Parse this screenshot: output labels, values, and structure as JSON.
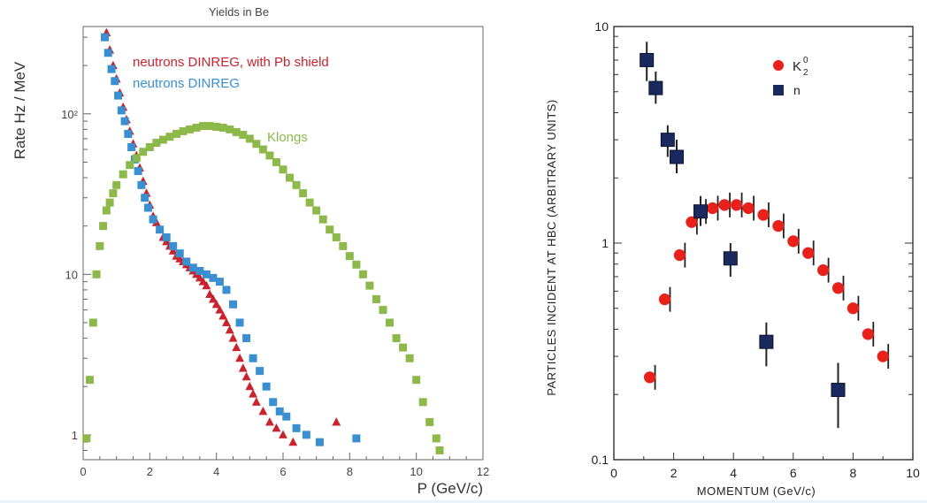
{
  "chart_data": [
    {
      "type": "scatter",
      "title": "Yields in Be",
      "xlabel": "P (GeV/c)",
      "ylabel": "Rate  Hz / MeV",
      "xlim": [
        0,
        12
      ],
      "ylim": [
        0.7,
        350
      ],
      "yscale": "log",
      "xticks": [
        "0",
        "2",
        "4",
        "6",
        "8",
        "10",
        "12"
      ],
      "yticks": [
        {
          "value": 1,
          "label": "1"
        },
        {
          "value": 10,
          "label": "10"
        },
        {
          "value": 100,
          "label": "10²"
        }
      ],
      "grid": false,
      "legend": "top-left, inside",
      "series": [
        {
          "name": "neutrons DINREG, with Pb shield",
          "color": "#c9242e",
          "marker": "triangle",
          "points": [
            [
              0.7,
              320
            ],
            [
              0.8,
              250
            ],
            [
              0.9,
              200
            ],
            [
              1.0,
              165
            ],
            [
              1.1,
              135
            ],
            [
              1.2,
              110
            ],
            [
              1.3,
              92
            ],
            [
              1.4,
              78
            ],
            [
              1.5,
              65
            ],
            [
              1.6,
              55
            ],
            [
              1.7,
              46
            ],
            [
              1.8,
              38
            ],
            [
              1.9,
              32
            ],
            [
              2.0,
              27
            ],
            [
              2.1,
              23
            ],
            [
              2.2,
              21
            ],
            [
              2.3,
              19
            ],
            [
              2.4,
              17
            ],
            [
              2.5,
              16
            ],
            [
              2.6,
              15
            ],
            [
              2.7,
              14
            ],
            [
              2.8,
              13
            ],
            [
              2.9,
              12.5
            ],
            [
              3.0,
              12
            ],
            [
              3.1,
              11.5
            ],
            [
              3.2,
              11
            ],
            [
              3.3,
              10.5
            ],
            [
              3.4,
              10
            ],
            [
              3.5,
              9.5
            ],
            [
              3.6,
              9
            ],
            [
              3.7,
              8.5
            ],
            [
              3.8,
              7.5
            ],
            [
              3.9,
              7
            ],
            [
              4.0,
              6.5
            ],
            [
              4.1,
              6
            ],
            [
              4.2,
              5.5
            ],
            [
              4.3,
              5
            ],
            [
              4.4,
              4.5
            ],
            [
              4.5,
              4
            ],
            [
              4.6,
              3.5
            ],
            [
              4.7,
              3
            ],
            [
              4.8,
              2.6
            ],
            [
              4.9,
              2.3
            ],
            [
              5.0,
              2.0
            ],
            [
              5.1,
              1.8
            ],
            [
              5.2,
              1.6
            ],
            [
              5.4,
              1.4
            ],
            [
              5.6,
              1.2
            ],
            [
              5.8,
              1.1
            ],
            [
              6.0,
              1.0
            ],
            [
              6.3,
              0.9
            ],
            [
              7.6,
              1.2
            ]
          ]
        },
        {
          "name": "neutrons DINREG",
          "color": "#3a8fd0",
          "marker": "square",
          "points": [
            [
              0.65,
              300
            ],
            [
              0.75,
              240
            ],
            [
              0.85,
              190
            ],
            [
              0.95,
              160
            ],
            [
              1.05,
              130
            ],
            [
              1.15,
              105
            ],
            [
              1.25,
              90
            ],
            [
              1.35,
              75
            ],
            [
              1.45,
              62
            ],
            [
              1.55,
              52
            ],
            [
              1.65,
              44
            ],
            [
              1.75,
              36
            ],
            [
              1.85,
              30
            ],
            [
              1.95,
              26
            ],
            [
              2.1,
              22
            ],
            [
              2.3,
              19
            ],
            [
              2.5,
              17
            ],
            [
              2.7,
              15
            ],
            [
              2.9,
              13.5
            ],
            [
              3.1,
              12
            ],
            [
              3.3,
              11
            ],
            [
              3.5,
              10.5
            ],
            [
              3.7,
              10
            ],
            [
              3.9,
              9.5
            ],
            [
              4.1,
              9
            ],
            [
              4.3,
              8
            ],
            [
              4.5,
              6.5
            ],
            [
              4.7,
              5
            ],
            [
              4.9,
              4
            ],
            [
              5.1,
              3
            ],
            [
              5.3,
              2.5
            ],
            [
              5.5,
              2
            ],
            [
              5.7,
              1.6
            ],
            [
              5.9,
              1.4
            ],
            [
              6.1,
              1.3
            ],
            [
              6.4,
              1.1
            ],
            [
              6.7,
              1.0
            ],
            [
              7.1,
              0.9
            ],
            [
              8.2,
              0.95
            ]
          ]
        },
        {
          "name": "Klongs",
          "color": "#8db84a",
          "marker": "square",
          "points": [
            [
              0.1,
              0.95
            ],
            [
              0.2,
              2.2
            ],
            [
              0.3,
              5.0
            ],
            [
              0.4,
              10
            ],
            [
              0.5,
              15
            ],
            [
              0.6,
              20
            ],
            [
              0.7,
              25
            ],
            [
              0.8,
              28
            ],
            [
              0.9,
              32
            ],
            [
              1.0,
              36
            ],
            [
              1.2,
              42
            ],
            [
              1.4,
              48
            ],
            [
              1.6,
              53
            ],
            [
              1.8,
              58
            ],
            [
              2.0,
              62
            ],
            [
              2.2,
              66
            ],
            [
              2.4,
              69
            ],
            [
              2.6,
              72
            ],
            [
              2.8,
              75
            ],
            [
              3.0,
              78
            ],
            [
              3.2,
              80
            ],
            [
              3.4,
              82
            ],
            [
              3.6,
              84
            ],
            [
              3.8,
              84
            ],
            [
              4.0,
              83
            ],
            [
              4.2,
              82
            ],
            [
              4.4,
              80
            ],
            [
              4.6,
              77
            ],
            [
              4.8,
              74
            ],
            [
              5.0,
              70
            ],
            [
              5.2,
              65
            ],
            [
              5.4,
              60
            ],
            [
              5.6,
              55
            ],
            [
              5.8,
              50
            ],
            [
              6.0,
              45
            ],
            [
              6.2,
              40
            ],
            [
              6.4,
              36
            ],
            [
              6.6,
              32
            ],
            [
              6.8,
              28
            ],
            [
              7.0,
              25
            ],
            [
              7.2,
              22
            ],
            [
              7.4,
              19
            ],
            [
              7.6,
              17
            ],
            [
              7.8,
              15
            ],
            [
              8.0,
              13
            ],
            [
              8.2,
              11.5
            ],
            [
              8.4,
              10
            ],
            [
              8.6,
              8.5
            ],
            [
              8.8,
              7
            ],
            [
              9.0,
              6
            ],
            [
              9.2,
              5
            ],
            [
              9.4,
              4
            ],
            [
              9.6,
              3.5
            ],
            [
              9.8,
              3
            ],
            [
              10.0,
              2.2
            ],
            [
              10.2,
              1.6
            ],
            [
              10.4,
              1.2
            ],
            [
              10.6,
              0.95
            ],
            [
              10.7,
              0.8
            ]
          ]
        }
      ]
    },
    {
      "type": "scatter",
      "title": "",
      "xlabel": "MOMENTUM (GeV/c)",
      "ylabel": "PARTICLES INCIDENT AT HBC  (ARBITRARY UNITS)",
      "xlim": [
        0,
        10
      ],
      "ylim": [
        0.1,
        10
      ],
      "yscale": "log",
      "xticks": [
        "0",
        "2",
        "4",
        "6",
        "8",
        "10"
      ],
      "yticks": [
        {
          "value": 0.1,
          "label": "0.1"
        },
        {
          "value": 1,
          "label": "1"
        },
        {
          "value": 10,
          "label": "10"
        }
      ],
      "grid": false,
      "legend": "top-right, inside",
      "series": [
        {
          "name": "K",
          "name_sub": "2",
          "name_sup": "0",
          "color": "#e8211b",
          "marker": "circle",
          "points": [
            [
              1.2,
              0.24
            ],
            [
              1.7,
              0.55
            ],
            [
              2.2,
              0.88
            ],
            [
              2.6,
              1.25
            ],
            [
              2.9,
              1.4
            ],
            [
              3.3,
              1.45
            ],
            [
              3.7,
              1.5
            ],
            [
              4.1,
              1.5
            ],
            [
              4.5,
              1.45
            ],
            [
              5.0,
              1.35
            ],
            [
              5.5,
              1.2
            ],
            [
              6.0,
              1.02
            ],
            [
              6.5,
              0.9
            ],
            [
              7.0,
              0.75
            ],
            [
              7.5,
              0.62
            ],
            [
              8.0,
              0.5
            ],
            [
              8.5,
              0.38
            ],
            [
              9.0,
              0.3
            ]
          ]
        },
        {
          "name": "n",
          "color": "#1b2a5e",
          "marker": "square",
          "points": [
            [
              1.1,
              7.0
            ],
            [
              1.4,
              5.2
            ],
            [
              1.8,
              3.0
            ],
            [
              2.1,
              2.5
            ],
            [
              2.9,
              1.4
            ],
            [
              3.9,
              0.85
            ],
            [
              5.1,
              0.35
            ],
            [
              7.5,
              0.21
            ]
          ],
          "errors": [
            [
              1.5,
              1.4
            ],
            [
              1.0,
              0.8
            ],
            [
              0.5,
              0.5
            ],
            [
              0.5,
              0.4
            ],
            [
              0.25,
              0.2
            ],
            [
              0.15,
              0.15
            ],
            [
              0.08,
              0.08
            ],
            [
              0.07,
              0.07
            ]
          ]
        }
      ]
    }
  ]
}
